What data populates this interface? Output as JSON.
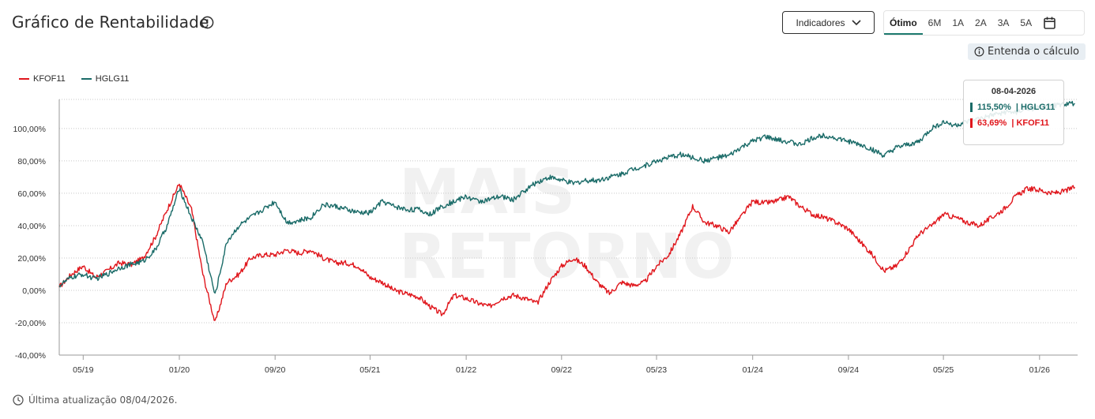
{
  "header": {
    "title": "Gráfico de Rentabilidade",
    "indicators_label": "Indicadores",
    "periods": [
      "Ótimo",
      "6M",
      "1A",
      "2A",
      "3A",
      "5A"
    ],
    "active_period": "Ótimo",
    "understand_label": "Entenda o cálculo"
  },
  "footer": {
    "updated_text": "Última atualização 08/04/2026."
  },
  "tooltip": {
    "date": "08-04-2026",
    "rows": [
      {
        "value": "115,50%",
        "series": "| HGLG11",
        "color": "#1a6b68"
      },
      {
        "value": "63,69%",
        "series": "| KFOF11",
        "color": "#e0161c"
      }
    ]
  },
  "colors": {
    "kfof": "#e0161c",
    "hglg": "#1a6b68",
    "accent": "#1d7a6f"
  },
  "chart_data": {
    "type": "line",
    "title": "Gráfico de Rentabilidade",
    "y_ticks": [
      "100,00%",
      "80,00%",
      "60,00%",
      "40,00%",
      "20,00%",
      "0,00%",
      "-20,00%",
      "-40,00%"
    ],
    "x_ticks": [
      "05/19",
      "01/20",
      "09/20",
      "05/21",
      "01/22",
      "09/22",
      "05/23",
      "01/24",
      "09/24",
      "05/25",
      "01/26"
    ],
    "ylim": [
      -40,
      118
    ],
    "grid": "horizontal dotted",
    "legend": "top-left",
    "series": [
      {
        "name": "KFOF11",
        "color": "#e0161c",
        "points": [
          [
            "2019-03",
            2
          ],
          [
            "2019-04",
            10
          ],
          [
            "2019-05",
            15
          ],
          [
            "2019-06",
            8
          ],
          [
            "2019-07",
            12
          ],
          [
            "2019-08",
            17
          ],
          [
            "2019-09",
            16
          ],
          [
            "2019-10",
            20
          ],
          [
            "2019-11",
            33
          ],
          [
            "2019-12",
            50
          ],
          [
            "2020-01",
            66
          ],
          [
            "2020-02",
            50
          ],
          [
            "2020-03",
            10
          ],
          [
            "2020-04",
            -20
          ],
          [
            "2020-05",
            5
          ],
          [
            "2020-06",
            10
          ],
          [
            "2020-07",
            20
          ],
          [
            "2020-08",
            22
          ],
          [
            "2020-09",
            22
          ],
          [
            "2020-10",
            25
          ],
          [
            "2020-11",
            23
          ],
          [
            "2020-12",
            25
          ],
          [
            "2021-01",
            20
          ],
          [
            "2021-02",
            17
          ],
          [
            "2021-03",
            17
          ],
          [
            "2021-04",
            15
          ],
          [
            "2021-05",
            8
          ],
          [
            "2021-06",
            5
          ],
          [
            "2021-07",
            0
          ],
          [
            "2021-08",
            -2
          ],
          [
            "2021-09",
            -4
          ],
          [
            "2021-10",
            -10
          ],
          [
            "2021-11",
            -15
          ],
          [
            "2021-12",
            -3
          ],
          [
            "2022-01",
            -5
          ],
          [
            "2022-02",
            -8
          ],
          [
            "2022-03",
            -10
          ],
          [
            "2022-04",
            -5
          ],
          [
            "2022-05",
            -3
          ],
          [
            "2022-06",
            -5
          ],
          [
            "2022-07",
            -8
          ],
          [
            "2022-08",
            5
          ],
          [
            "2022-09",
            15
          ],
          [
            "2022-10",
            20
          ],
          [
            "2022-11",
            15
          ],
          [
            "2022-12",
            5
          ],
          [
            "2023-01",
            -2
          ],
          [
            "2023-02",
            5
          ],
          [
            "2023-03",
            3
          ],
          [
            "2023-04",
            5
          ],
          [
            "2023-05",
            15
          ],
          [
            "2023-06",
            22
          ],
          [
            "2023-07",
            35
          ],
          [
            "2023-08",
            52
          ],
          [
            "2023-09",
            42
          ],
          [
            "2023-10",
            40
          ],
          [
            "2023-11",
            36
          ],
          [
            "2023-12",
            45
          ],
          [
            "2024-01",
            55
          ],
          [
            "2024-02",
            54
          ],
          [
            "2024-03",
            55
          ],
          [
            "2024-04",
            58
          ],
          [
            "2024-05",
            52
          ],
          [
            "2024-06",
            47
          ],
          [
            "2024-07",
            45
          ],
          [
            "2024-08",
            42
          ],
          [
            "2024-09",
            38
          ],
          [
            "2024-10",
            30
          ],
          [
            "2024-11",
            22
          ],
          [
            "2024-12",
            12
          ],
          [
            "2025-01",
            15
          ],
          [
            "2025-02",
            25
          ],
          [
            "2025-03",
            35
          ],
          [
            "2025-04",
            40
          ],
          [
            "2025-05",
            47
          ],
          [
            "2025-06",
            45
          ],
          [
            "2025-07",
            42
          ],
          [
            "2025-08",
            40
          ],
          [
            "2025-09",
            45
          ],
          [
            "2025-10",
            50
          ],
          [
            "2025-11",
            58
          ],
          [
            "2025-12",
            63
          ],
          [
            "2026-01",
            62
          ],
          [
            "2026-02",
            60
          ],
          [
            "2026-03",
            61
          ],
          [
            "2026-04",
            63.69
          ]
        ]
      },
      {
        "name": "HGLG11",
        "color": "#1a6b68",
        "points": [
          [
            "2019-03",
            3
          ],
          [
            "2019-04",
            8
          ],
          [
            "2019-05",
            10
          ],
          [
            "2019-06",
            7
          ],
          [
            "2019-07",
            10
          ],
          [
            "2019-08",
            14
          ],
          [
            "2019-09",
            16
          ],
          [
            "2019-10",
            18
          ],
          [
            "2019-11",
            25
          ],
          [
            "2019-12",
            40
          ],
          [
            "2020-01",
            63
          ],
          [
            "2020-02",
            45
          ],
          [
            "2020-03",
            30
          ],
          [
            "2020-04",
            -3
          ],
          [
            "2020-05",
            30
          ],
          [
            "2020-06",
            40
          ],
          [
            "2020-07",
            45
          ],
          [
            "2020-08",
            50
          ],
          [
            "2020-09",
            55
          ],
          [
            "2020-10",
            42
          ],
          [
            "2020-11",
            43
          ],
          [
            "2020-12",
            45
          ],
          [
            "2021-01",
            53
          ],
          [
            "2021-02",
            52
          ],
          [
            "2021-03",
            50
          ],
          [
            "2021-04",
            48
          ],
          [
            "2021-05",
            48
          ],
          [
            "2021-06",
            55
          ],
          [
            "2021-07",
            52
          ],
          [
            "2021-08",
            50
          ],
          [
            "2021-09",
            50
          ],
          [
            "2021-10",
            47
          ],
          [
            "2021-11",
            52
          ],
          [
            "2021-12",
            55
          ],
          [
            "2022-01",
            58
          ],
          [
            "2022-02",
            55
          ],
          [
            "2022-03",
            56
          ],
          [
            "2022-04",
            58
          ],
          [
            "2022-05",
            56
          ],
          [
            "2022-06",
            62
          ],
          [
            "2022-07",
            67
          ],
          [
            "2022-08",
            70
          ],
          [
            "2022-09",
            68
          ],
          [
            "2022-10",
            66
          ],
          [
            "2022-11",
            68
          ],
          [
            "2022-12",
            68
          ],
          [
            "2023-01",
            70
          ],
          [
            "2023-02",
            72
          ],
          [
            "2023-03",
            75
          ],
          [
            "2023-04",
            77
          ],
          [
            "2023-05",
            80
          ],
          [
            "2023-06",
            82
          ],
          [
            "2023-07",
            84
          ],
          [
            "2023-08",
            82
          ],
          [
            "2023-09",
            80
          ],
          [
            "2023-10",
            82
          ],
          [
            "2023-11",
            83
          ],
          [
            "2023-12",
            88
          ],
          [
            "2024-01",
            92
          ],
          [
            "2024-02",
            95
          ],
          [
            "2024-03",
            93
          ],
          [
            "2024-04",
            92
          ],
          [
            "2024-05",
            90
          ],
          [
            "2024-06",
            94
          ],
          [
            "2024-07",
            96
          ],
          [
            "2024-08",
            94
          ],
          [
            "2024-09",
            92
          ],
          [
            "2024-10",
            90
          ],
          [
            "2024-11",
            87
          ],
          [
            "2024-12",
            83
          ],
          [
            "2025-01",
            88
          ],
          [
            "2025-02",
            90
          ],
          [
            "2025-03",
            92
          ],
          [
            "2025-04",
            100
          ],
          [
            "2025-05",
            104
          ],
          [
            "2025-06",
            102
          ],
          [
            "2025-07",
            104
          ],
          [
            "2025-08",
            106
          ],
          [
            "2025-09",
            108
          ],
          [
            "2025-10",
            110
          ],
          [
            "2025-11",
            110
          ],
          [
            "2025-12",
            112
          ],
          [
            "2026-01",
            113
          ],
          [
            "2026-02",
            114
          ],
          [
            "2026-03",
            115
          ],
          [
            "2026-04",
            115.5
          ]
        ]
      }
    ]
  }
}
